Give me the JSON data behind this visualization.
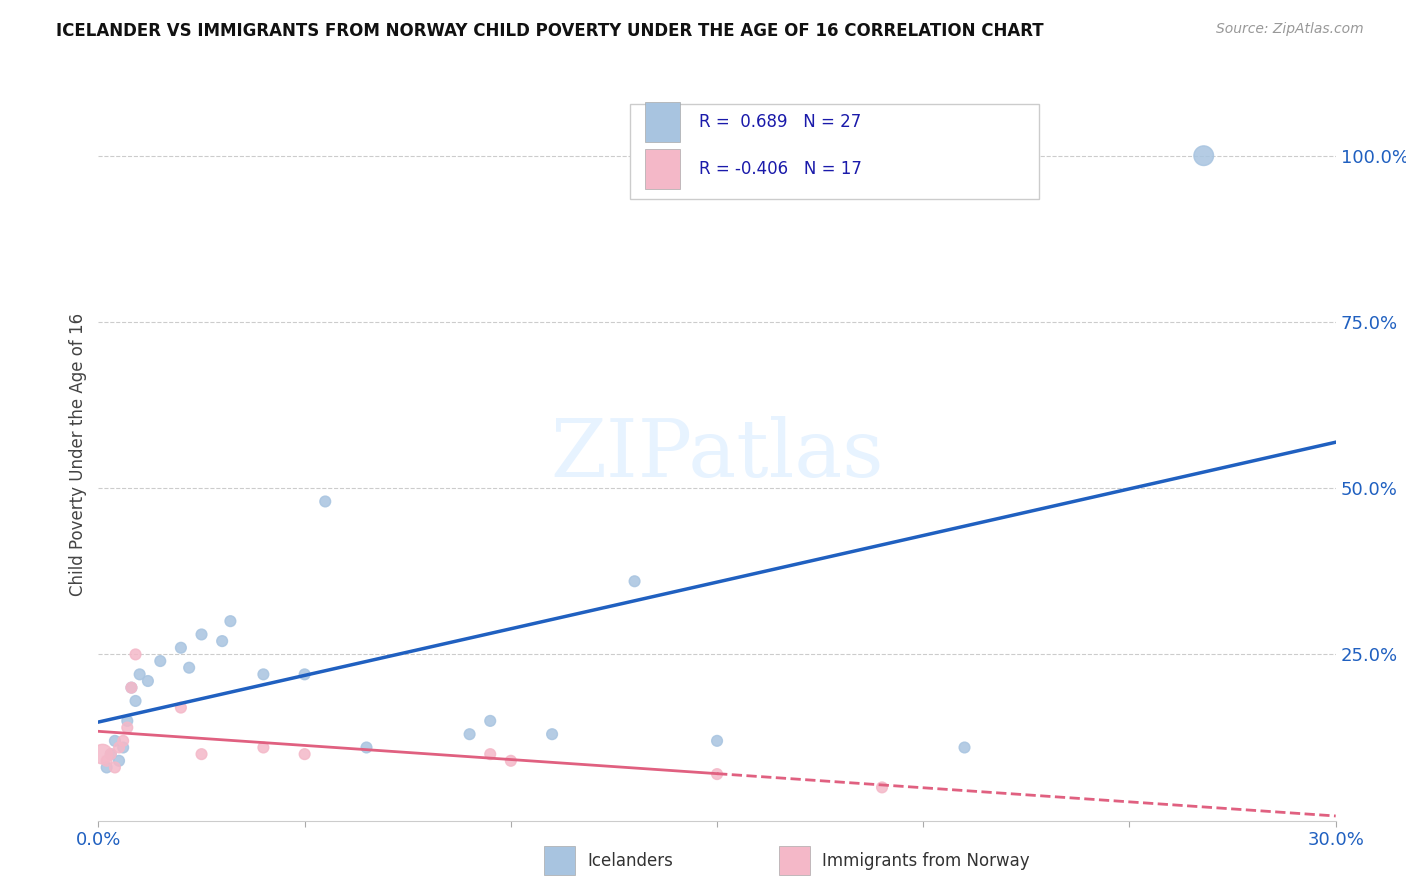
{
  "title": "ICELANDER VS IMMIGRANTS FROM NORWAY CHILD POVERTY UNDER THE AGE OF 16 CORRELATION CHART",
  "source": "Source: ZipAtlas.com",
  "ylabel": "Child Poverty Under the Age of 16",
  "xlim": [
    0.0,
    0.3
  ],
  "ylim": [
    0.0,
    1.1
  ],
  "xticks": [
    0.0,
    0.05,
    0.1,
    0.15,
    0.2,
    0.25,
    0.3
  ],
  "xticklabels": [
    "0.0%",
    "",
    "",
    "",
    "",
    "",
    "30.0%"
  ],
  "yticks": [
    0.0,
    0.25,
    0.5,
    0.75,
    1.0
  ],
  "yticklabels": [
    "",
    "25.0%",
    "50.0%",
    "75.0%",
    "100.0%"
  ],
  "legend_labels": [
    "Icelanders",
    "Immigrants from Norway"
  ],
  "R_icelander": 0.689,
  "N_icelander": 27,
  "R_norway": -0.406,
  "N_norway": 17,
  "icelander_color": "#a8c4e0",
  "norway_color": "#f4b8c8",
  "icelander_line_color": "#2060c0",
  "norway_line_color": "#e06080",
  "background_color": "#ffffff",
  "grid_color": "#cccccc",
  "watermark": "ZIPatlas",
  "icelander_x": [
    0.002,
    0.003,
    0.004,
    0.005,
    0.006,
    0.007,
    0.008,
    0.009,
    0.01,
    0.012,
    0.015,
    0.02,
    0.022,
    0.025,
    0.03,
    0.032,
    0.04,
    0.05,
    0.055,
    0.065,
    0.09,
    0.095,
    0.11,
    0.13,
    0.15,
    0.21,
    0.268
  ],
  "icelander_y": [
    0.08,
    0.1,
    0.12,
    0.09,
    0.11,
    0.15,
    0.2,
    0.18,
    0.22,
    0.21,
    0.24,
    0.26,
    0.23,
    0.28,
    0.27,
    0.3,
    0.22,
    0.22,
    0.48,
    0.11,
    0.13,
    0.15,
    0.13,
    0.36,
    0.12,
    0.11,
    1.0
  ],
  "icelander_size": [
    60,
    60,
    60,
    60,
    60,
    60,
    60,
    60,
    60,
    60,
    60,
    60,
    60,
    60,
    60,
    60,
    60,
    60,
    60,
    60,
    60,
    60,
    60,
    60,
    60,
    60,
    200
  ],
  "norway_x": [
    0.001,
    0.002,
    0.003,
    0.004,
    0.005,
    0.006,
    0.007,
    0.008,
    0.009,
    0.02,
    0.025,
    0.04,
    0.05,
    0.095,
    0.1,
    0.15,
    0.19
  ],
  "norway_y": [
    0.1,
    0.09,
    0.1,
    0.08,
    0.11,
    0.12,
    0.14,
    0.2,
    0.25,
    0.17,
    0.1,
    0.11,
    0.1,
    0.1,
    0.09,
    0.07,
    0.05
  ],
  "norway_size": [
    200,
    60,
    60,
    60,
    60,
    60,
    60,
    60,
    60,
    60,
    60,
    60,
    60,
    60,
    60,
    60,
    60
  ]
}
